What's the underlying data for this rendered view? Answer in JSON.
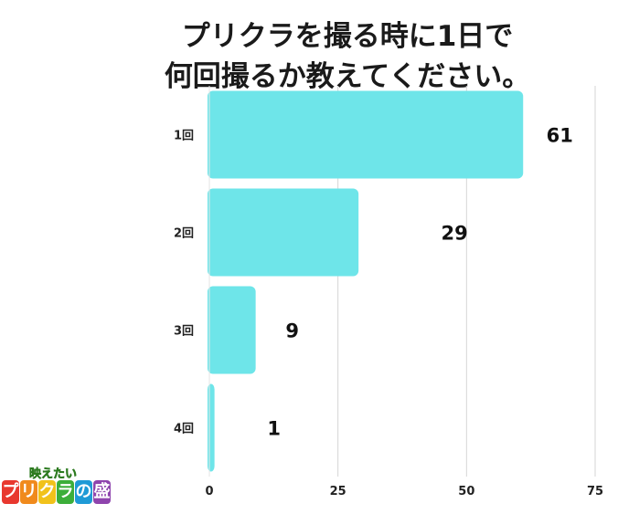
{
  "title_lines": [
    "プリクラを撮る時に1日で",
    "何回撮るか教えてください。"
  ],
  "chart_data": {
    "type": "bar",
    "orientation": "horizontal",
    "title": "プリクラを撮る時に1日で何回撮るか教えてください。",
    "categories": [
      "1回",
      "2回",
      "3回",
      "4回"
    ],
    "values": [
      61,
      29,
      9,
      1
    ],
    "xlim": [
      0,
      75
    ],
    "xticks": [
      0,
      25,
      50,
      75
    ],
    "grid": true,
    "bar_color": "#6ee5e9",
    "grid_color": "#d6d6d6"
  },
  "logo": {
    "top_text": "映えたい",
    "main_chars": [
      "プ",
      "リ",
      "ク",
      "ラ",
      "の",
      "盛"
    ],
    "main_colors": [
      "#e8382f",
      "#f08a1c",
      "#f1c21b",
      "#3cae3a",
      "#1f9ad6",
      "#8e44ad"
    ]
  }
}
